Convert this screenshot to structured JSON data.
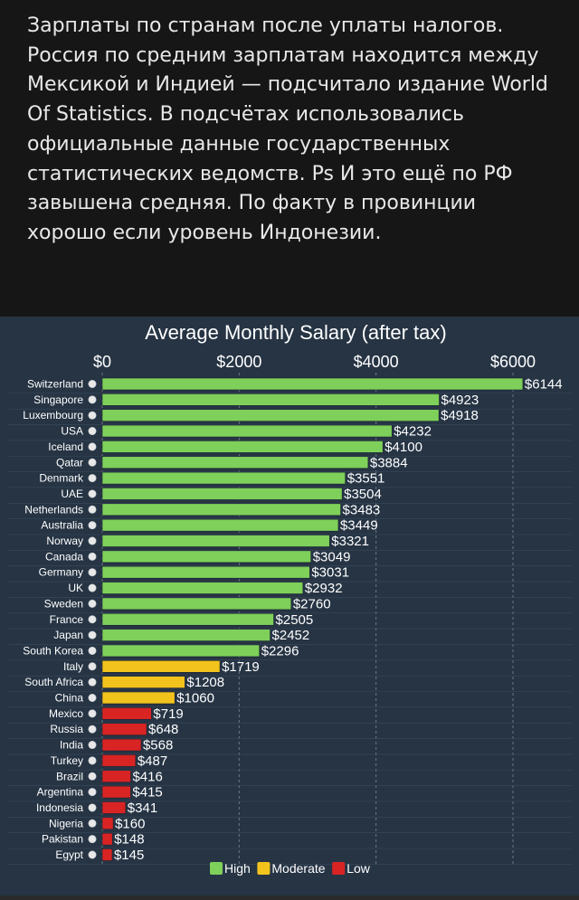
{
  "post": {
    "text": "Зарплаты по странам после уплаты налогов. Россия по средним зарплатам находится между Мексикой и Индией — подсчитало издание World Of Statistics. В подсчётах использовались официальные данные государственных статистических ведомств. Ps И это ещё по РФ завышена средняя. По факту в провинции хорошо если уровень Индонезии."
  },
  "colors": {
    "background": "#263444",
    "high": "#7ed05a",
    "moderate": "#f2c31d",
    "low": "#d92424",
    "text": "#ffffff",
    "post_bg": "#161616"
  },
  "chart_data": {
    "type": "bar",
    "orientation": "horizontal",
    "title": "Average Monthly Salary (after tax)",
    "x_ticks": [
      "$0",
      "$2000",
      "$4000",
      "$6000"
    ],
    "x_tick_values": [
      0,
      2000,
      4000,
      6000
    ],
    "xlim": [
      0,
      6144
    ],
    "grid": true,
    "categories": [
      "Switzerland",
      "Singapore",
      "Luxembourg",
      "USA",
      "Iceland",
      "Qatar",
      "Denmark",
      "UAE",
      "Netherlands",
      "Australia",
      "Norway",
      "Canada",
      "Germany",
      "UK",
      "Sweden",
      "France",
      "Japan",
      "South Korea",
      "Italy",
      "South Africa",
      "China",
      "Mexico",
      "Russia",
      "India",
      "Turkey",
      "Brazil",
      "Argentina",
      "Indonesia",
      "Nigeria",
      "Pakistan",
      "Egypt"
    ],
    "values": [
      6144,
      4923,
      4918,
      4232,
      4100,
      3884,
      3551,
      3504,
      3483,
      3449,
      3321,
      3049,
      3031,
      2932,
      2760,
      2505,
      2452,
      2296,
      1719,
      1208,
      1060,
      719,
      648,
      568,
      487,
      416,
      415,
      341,
      160,
      148,
      145
    ],
    "value_labels": [
      "$6144",
      "$4923",
      "$4918",
      "$4232",
      "$4100",
      "$3884",
      "$3551",
      "$3504",
      "$3483",
      "$3449",
      "$3321",
      "$3049",
      "$3031",
      "$2932",
      "$2760",
      "$2505",
      "$2452",
      "$2296",
      "$1719",
      "$1208",
      "$1060",
      "$719",
      "$648",
      "$568",
      "$487",
      "$416",
      "$415",
      "$341",
      "$160",
      "$148",
      "$145"
    ],
    "levels": [
      "High",
      "High",
      "High",
      "High",
      "High",
      "High",
      "High",
      "High",
      "High",
      "High",
      "High",
      "High",
      "High",
      "High",
      "High",
      "High",
      "High",
      "High",
      "Moderate",
      "Moderate",
      "Moderate",
      "Low",
      "Low",
      "Low",
      "Low",
      "Low",
      "Low",
      "Low",
      "Low",
      "Low",
      "Low"
    ],
    "legend": {
      "position": "bottom",
      "items": [
        {
          "label": "High",
          "color": "#7ed05a"
        },
        {
          "label": "Moderate",
          "color": "#f2c31d"
        },
        {
          "label": "Low",
          "color": "#d92424"
        }
      ]
    }
  }
}
